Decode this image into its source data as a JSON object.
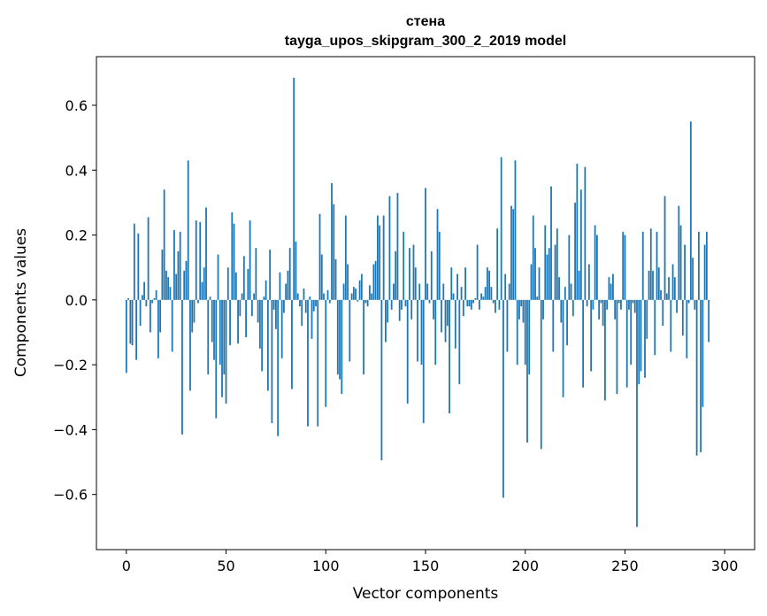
{
  "chart_data": {
    "type": "bar",
    "title": "стена",
    "subtitle": "tayga_upos_skipgram_300_2_2019 model",
    "xlabel": "Vector components",
    "ylabel": "Components values",
    "xlim": [
      -15,
      315
    ],
    "ylim": [
      -0.77,
      0.75
    ],
    "xticks": [
      0,
      50,
      100,
      150,
      200,
      250,
      300
    ],
    "yticks": [
      -0.6,
      -0.4,
      -0.2,
      0.0,
      0.2,
      0.4,
      0.6
    ],
    "ytick_labels": [
      "−0.6",
      "−0.4",
      "−0.2",
      "0.0",
      "0.2",
      "0.4",
      "0.6"
    ],
    "grid": false,
    "series": [
      {
        "name": "стена",
        "color": "#1f77b4",
        "x_start": 0,
        "values": [
          -0.225,
          0.005,
          -0.135,
          -0.14,
          0.235,
          -0.185,
          0.205,
          -0.08,
          0.015,
          0.055,
          -0.02,
          0.255,
          -0.1,
          -0.01,
          0.005,
          0.03,
          -0.18,
          -0.1,
          0.155,
          0.34,
          0.09,
          0.07,
          0.04,
          -0.16,
          0.215,
          0.08,
          0.15,
          0.21,
          -0.415,
          0.09,
          0.12,
          0.43,
          -0.28,
          -0.1,
          -0.07,
          0.245,
          -0.01,
          0.24,
          0.055,
          0.1,
          0.285,
          -0.23,
          0.01,
          -0.13,
          -0.185,
          -0.365,
          0.14,
          -0.2,
          -0.3,
          -0.23,
          -0.32,
          0.1,
          -0.14,
          0.27,
          0.235,
          0.085,
          -0.135,
          -0.05,
          0.02,
          0.135,
          -0.115,
          0.095,
          0.245,
          -0.05,
          0.02,
          0.16,
          -0.07,
          -0.15,
          -0.22,
          0.01,
          0.06,
          -0.28,
          0.155,
          -0.38,
          -0.03,
          -0.09,
          -0.42,
          0.085,
          -0.18,
          -0.04,
          0.05,
          0.09,
          0.16,
          -0.275,
          0.685,
          0.18,
          0.02,
          -0.02,
          -0.08,
          0.035,
          -0.04,
          -0.39,
          0.01,
          -0.12,
          -0.035,
          -0.02,
          -0.39,
          0.265,
          0.14,
          0.02,
          -0.33,
          0.03,
          -0.01,
          0.36,
          0.295,
          0.125,
          -0.23,
          -0.245,
          -0.29,
          0.05,
          0.26,
          0.11,
          -0.19,
          0.02,
          0.04,
          0.035,
          -0.005,
          0.06,
          0.08,
          -0.23,
          -0.01,
          -0.02,
          0.045,
          0.02,
          0.11,
          0.12,
          0.26,
          0.23,
          -0.495,
          0.26,
          -0.13,
          -0.07,
          0.32,
          -0.03,
          0.05,
          0.15,
          0.33,
          -0.065,
          -0.03,
          0.21,
          -0.02,
          -0.32,
          0.16,
          -0.06,
          0.17,
          0.1,
          -0.19,
          0.05,
          -0.2,
          -0.38,
          0.345,
          0.05,
          -0.01,
          0.15,
          -0.06,
          -0.2,
          0.28,
          0.21,
          -0.1,
          0.05,
          -0.13,
          -0.08,
          -0.35,
          0.1,
          0.02,
          -0.15,
          0.08,
          -0.26,
          0.04,
          -0.05,
          0.1,
          -0.02,
          -0.02,
          -0.03,
          -0.01,
          0.005,
          0.17,
          -0.03,
          0.02,
          0.01,
          0.04,
          0.1,
          0.09,
          0.04,
          -0.01,
          -0.04,
          0.22,
          -0.03,
          0.44,
          -0.61,
          0.08,
          -0.16,
          0.05,
          0.29,
          0.28,
          0.43,
          -0.2,
          -0.06,
          -0.02,
          -0.07,
          -0.2,
          -0.44,
          -0.23,
          0.11,
          0.26,
          0.16,
          0.01,
          0.1,
          -0.46,
          -0.06,
          0.23,
          0.14,
          0.16,
          0.35,
          -0.16,
          0.17,
          0.22,
          0.07,
          -0.07,
          -0.3,
          0.04,
          -0.14,
          0.2,
          0.05,
          -0.05,
          0.3,
          0.42,
          0.09,
          0.34,
          -0.27,
          0.41,
          -0.02,
          0.11,
          -0.22,
          -0.03,
          0.23,
          0.2,
          -0.06,
          -0.01,
          -0.08,
          -0.31,
          -0.03,
          0.07,
          0.05,
          0.08,
          -0.06,
          -0.29,
          -0.01,
          -0.03,
          0.21,
          0.2,
          -0.27,
          -0.03,
          -0.2,
          -0.01,
          -0.04,
          -0.7,
          -0.26,
          -0.22,
          0.21,
          -0.24,
          -0.12,
          0.09,
          0.22,
          0.09,
          -0.17,
          0.21,
          0.1,
          0.03,
          -0.08,
          0.32,
          0.02,
          0.07,
          -0.16,
          0.11,
          0.07,
          -0.04,
          0.29,
          0.23,
          -0.11,
          0.17,
          -0.18,
          -0.01,
          0.55,
          0.13,
          -0.03,
          -0.48,
          0.21,
          -0.47,
          -0.33,
          0.17,
          0.21,
          -0.13
        ]
      }
    ]
  }
}
